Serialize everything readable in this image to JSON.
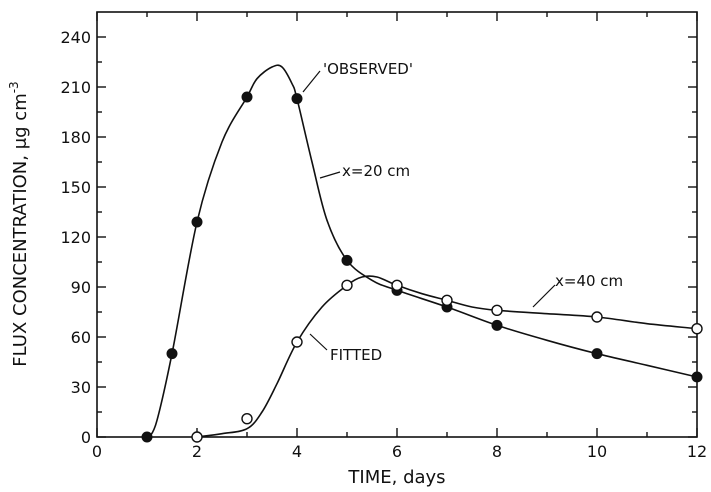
{
  "chart_data": {
    "type": "line",
    "xlabel": "TIME, days",
    "ylabel_main": "FLUX CONCENTRATION, μg cm",
    "ylabel_exp": "-3",
    "xlim": [
      0,
      12
    ],
    "ylim": [
      0,
      255
    ],
    "xticks": [
      0,
      2,
      4,
      6,
      8,
      10,
      12
    ],
    "yticks": [
      0,
      30,
      60,
      90,
      120,
      150,
      180,
      210,
      240
    ],
    "grid": false,
    "series": [
      {
        "name": "x = 20 cm",
        "marker": "filled-circle",
        "points": [
          [
            1,
            0
          ],
          [
            1.5,
            50
          ],
          [
            2,
            129
          ],
          [
            3,
            204
          ],
          [
            4,
            203
          ],
          [
            5,
            106
          ],
          [
            6,
            88
          ],
          [
            7,
            78
          ],
          [
            8,
            67
          ],
          [
            10,
            50
          ],
          [
            12,
            36
          ]
        ],
        "fitted_curve": [
          [
            1.05,
            0
          ],
          [
            1.2,
            10
          ],
          [
            1.5,
            50
          ],
          [
            2,
            129
          ],
          [
            2.5,
            177
          ],
          [
            3,
            204
          ],
          [
            3.2,
            215
          ],
          [
            3.5,
            222
          ],
          [
            3.7,
            222
          ],
          [
            3.9,
            212
          ],
          [
            4,
            203
          ],
          [
            4.3,
            165
          ],
          [
            4.6,
            130
          ],
          [
            5,
            106
          ],
          [
            5.5,
            94
          ],
          [
            6,
            88
          ],
          [
            7,
            78
          ],
          [
            8,
            67
          ],
          [
            9,
            58
          ],
          [
            10,
            50
          ],
          [
            11,
            43
          ],
          [
            12,
            36
          ]
        ]
      },
      {
        "name": "x = 40 cm",
        "marker": "open-circle",
        "points": [
          [
            2,
            0
          ],
          [
            3,
            11
          ],
          [
            4,
            57
          ],
          [
            5,
            91
          ],
          [
            6,
            91
          ],
          [
            7,
            82
          ],
          [
            8,
            76
          ],
          [
            10,
            72
          ],
          [
            12,
            65
          ]
        ],
        "fitted_curve": [
          [
            2,
            0
          ],
          [
            2.5,
            2
          ],
          [
            3,
            5
          ],
          [
            3.3,
            15
          ],
          [
            3.6,
            32
          ],
          [
            4,
            57
          ],
          [
            4.5,
            78
          ],
          [
            5,
            91
          ],
          [
            5.3,
            96
          ],
          [
            5.6,
            96
          ],
          [
            6,
            91
          ],
          [
            6.5,
            86
          ],
          [
            7,
            82
          ],
          [
            7.5,
            78
          ],
          [
            8,
            76
          ],
          [
            9,
            74
          ],
          [
            10,
            72
          ],
          [
            11,
            68
          ],
          [
            12,
            65
          ]
        ]
      }
    ],
    "annotations": {
      "observed": "'OBSERVED'",
      "fitted": "FITTED",
      "x20": "x=20 cm",
      "x40": "x=40 cm"
    }
  }
}
